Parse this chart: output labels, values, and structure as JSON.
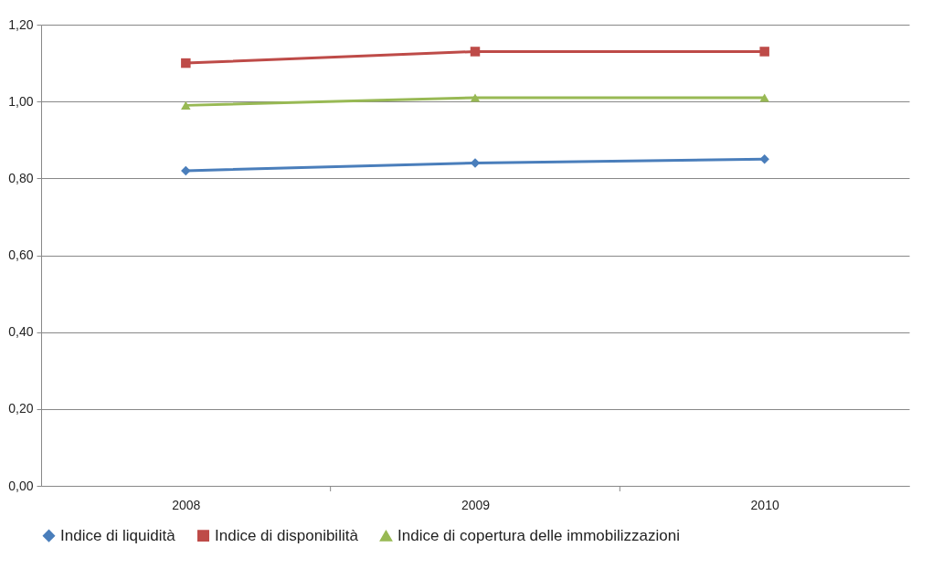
{
  "chart_data": {
    "type": "line",
    "categories": [
      "2008",
      "2009",
      "2010"
    ],
    "series": [
      {
        "name": "Indice di liquidità",
        "color": "#4a7ebb",
        "marker": "diamond",
        "values": [
          0.82,
          0.84,
          0.85
        ]
      },
      {
        "name": "Indice di disponibilità",
        "color": "#be4b48",
        "marker": "square",
        "values": [
          1.1,
          1.13,
          1.13
        ]
      },
      {
        "name": "Indice di copertura delle immobilizzazioni",
        "color": "#98b954",
        "marker": "triangle",
        "values": [
          0.99,
          1.01,
          1.01
        ]
      }
    ],
    "ylim": [
      0,
      1.2
    ],
    "yticks": [
      {
        "value": 0,
        "label": "0,00"
      },
      {
        "value": 0.2,
        "label": "0,20"
      },
      {
        "value": 0.4,
        "label": "0,40"
      },
      {
        "value": 0.6,
        "label": "0,60"
      },
      {
        "value": 0.8,
        "label": "0,80"
      },
      {
        "value": 1.0,
        "label": "1,00"
      },
      {
        "value": 1.2,
        "label": "1,20"
      }
    ],
    "grid": "y",
    "legend": "bottom",
    "line_style": "solid"
  }
}
